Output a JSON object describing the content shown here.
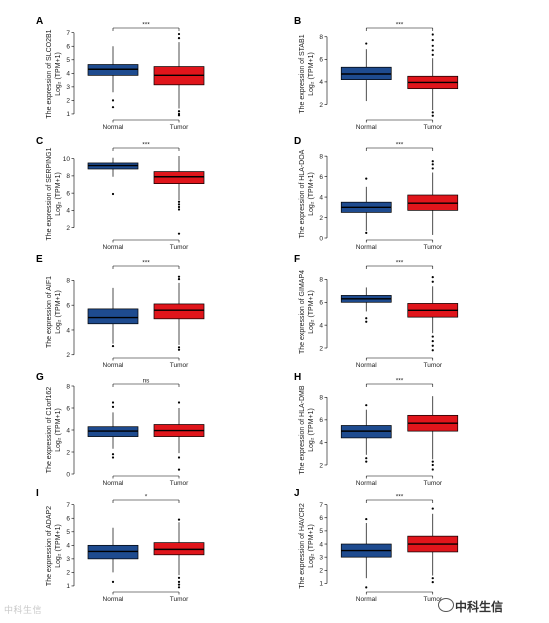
{
  "figure": {
    "xlabel_prefix": "",
    "category_normal": "Normal",
    "category_tumor": "Tumor",
    "ylabel_line2": "Log₂ (TPM+1)"
  },
  "colors": {
    "normal": "#1e4b8f",
    "tumor": "#e0151b",
    "line": "#000000"
  },
  "watermark": {
    "left_text": "中科生信",
    "left_prefix": "4",
    "right_text": "中科生信"
  },
  "chart_data": [
    {
      "panel": "A",
      "type": "boxplot",
      "ylabel": "The expression of SLCO2B1",
      "categories": [
        "Normal",
        "Tumor"
      ],
      "yticks": [
        1,
        2,
        3,
        4,
        5,
        6,
        7
      ],
      "ylim": [
        0.7,
        7.2
      ],
      "significance": "***",
      "series": [
        {
          "name": "Normal",
          "min": 2.6,
          "q1": 3.85,
          "median": 4.3,
          "q3": 4.65,
          "max": 6.0,
          "outliers": [
            2.0,
            1.5
          ]
        },
        {
          "name": "Tumor",
          "min": 1.4,
          "q1": 3.15,
          "median": 3.85,
          "q3": 4.5,
          "max": 6.3,
          "outliers": [
            6.6,
            6.9,
            1.2,
            1.0,
            0.9
          ]
        }
      ]
    },
    {
      "panel": "B",
      "type": "boxplot",
      "ylabel": "The expression of STAB1",
      "categories": [
        "Normal",
        "Tumor"
      ],
      "yticks": [
        2,
        4,
        6,
        8
      ],
      "ylim": [
        0.8,
        8.6
      ],
      "significance": "***",
      "series": [
        {
          "name": "Normal",
          "min": 2.3,
          "q1": 4.2,
          "median": 4.7,
          "q3": 5.3,
          "max": 6.9,
          "outliers": [
            7.4
          ]
        },
        {
          "name": "Tumor",
          "min": 1.5,
          "q1": 3.4,
          "median": 3.95,
          "q3": 4.5,
          "max": 6.1,
          "outliers": [
            6.4,
            6.8,
            7.2,
            7.7,
            8.2,
            1.3,
            1.0
          ]
        }
      ]
    },
    {
      "panel": "C",
      "type": "boxplot",
      "ylabel": "The expression of SERPING1",
      "categories": [
        "Normal",
        "Tumor"
      ],
      "yticks": [
        2,
        4,
        6,
        8,
        10
      ],
      "ylim": [
        0.8,
        11.0
      ],
      "significance": "***",
      "series": [
        {
          "name": "Normal",
          "min": 7.9,
          "q1": 8.8,
          "median": 9.2,
          "q3": 9.5,
          "max": 10.1,
          "outliers": [
            5.9
          ]
        },
        {
          "name": "Tumor",
          "min": 5.2,
          "q1": 7.1,
          "median": 7.9,
          "q3": 8.5,
          "max": 10.3,
          "outliers": [
            5.0,
            4.7,
            4.4,
            4.1,
            1.3
          ]
        }
      ]
    },
    {
      "panel": "D",
      "type": "boxplot",
      "ylabel": "The expression of HLA-DOA",
      "categories": [
        "Normal",
        "Tumor"
      ],
      "yticks": [
        0,
        2,
        4,
        6,
        8
      ],
      "ylim": [
        0,
        8.6
      ],
      "significance": "***",
      "series": [
        {
          "name": "Normal",
          "min": 0.7,
          "q1": 2.5,
          "median": 3.0,
          "q3": 3.5,
          "max": 5.0,
          "outliers": [
            5.8,
            0.5
          ]
        },
        {
          "name": "Tumor",
          "min": 0.3,
          "q1": 2.7,
          "median": 3.4,
          "q3": 4.2,
          "max": 6.4,
          "outliers": [
            6.8,
            7.2,
            7.5
          ]
        }
      ]
    },
    {
      "panel": "E",
      "type": "boxplot",
      "ylabel": "The expression of AIF1",
      "categories": [
        "Normal",
        "Tumor"
      ],
      "yticks": [
        2,
        4,
        6,
        8
      ],
      "ylim": [
        1.9,
        9.0
      ],
      "significance": "***",
      "series": [
        {
          "name": "Normal",
          "min": 2.9,
          "q1": 4.5,
          "median": 5.0,
          "q3": 5.7,
          "max": 7.4,
          "outliers": [
            2.7
          ]
        },
        {
          "name": "Tumor",
          "min": 2.8,
          "q1": 4.9,
          "median": 5.6,
          "q3": 6.1,
          "max": 7.8,
          "outliers": [
            8.1,
            8.3,
            2.6,
            2.4
          ]
        }
      ]
    },
    {
      "panel": "F",
      "type": "boxplot",
      "ylabel": "The expression of GIMAP4",
      "categories": [
        "Normal",
        "Tumor"
      ],
      "yticks": [
        2,
        4,
        6,
        8
      ],
      "ylim": [
        1.3,
        9.0
      ],
      "significance": "***",
      "series": [
        {
          "name": "Normal",
          "min": 5.2,
          "q1": 6.0,
          "median": 6.3,
          "q3": 6.6,
          "max": 7.3,
          "outliers": [
            4.6,
            4.3
          ]
        },
        {
          "name": "Tumor",
          "min": 3.3,
          "q1": 4.7,
          "median": 5.3,
          "q3": 5.9,
          "max": 7.4,
          "outliers": [
            7.8,
            8.2,
            3.0,
            2.6,
            2.2,
            1.8
          ]
        }
      ]
    },
    {
      "panel": "G",
      "type": "boxplot",
      "ylabel": "The expression of C1orf162",
      "categories": [
        "Normal",
        "Tumor"
      ],
      "yticks": [
        0,
        2,
        4,
        6,
        8
      ],
      "ylim": [
        0,
        8.0
      ],
      "significance": "ns",
      "series": [
        {
          "name": "Normal",
          "min": 2.3,
          "q1": 3.4,
          "median": 3.9,
          "q3": 4.3,
          "max": 5.6,
          "outliers": [
            6.1,
            6.5,
            1.8,
            1.5
          ]
        },
        {
          "name": "Tumor",
          "min": 1.9,
          "q1": 3.4,
          "median": 3.95,
          "q3": 4.5,
          "max": 6.0,
          "outliers": [
            6.5,
            1.5,
            0.4
          ]
        }
      ]
    },
    {
      "panel": "H",
      "type": "boxplot",
      "ylabel": "The expression of HLA-DMB",
      "categories": [
        "Normal",
        "Tumor"
      ],
      "yticks": [
        2,
        4,
        6,
        8
      ],
      "ylim": [
        1.2,
        9.0
      ],
      "significance": "***",
      "series": [
        {
          "name": "Normal",
          "min": 2.9,
          "q1": 4.4,
          "median": 5.0,
          "q3": 5.5,
          "max": 6.9,
          "outliers": [
            7.3,
            2.6,
            2.3
          ]
        },
        {
          "name": "Tumor",
          "min": 2.5,
          "q1": 5.0,
          "median": 5.7,
          "q3": 6.4,
          "max": 8.1,
          "outliers": [
            2.3,
            2.0,
            1.6
          ]
        }
      ]
    },
    {
      "panel": "I",
      "type": "boxplot",
      "ylabel": "The expression of ADAP2",
      "categories": [
        "Normal",
        "Tumor"
      ],
      "yticks": [
        1,
        2,
        3,
        4,
        5,
        6,
        7
      ],
      "ylim": [
        0.7,
        7.2
      ],
      "significance": "*",
      "series": [
        {
          "name": "Normal",
          "min": 2.0,
          "q1": 3.0,
          "median": 3.55,
          "q3": 4.0,
          "max": 5.3,
          "outliers": [
            1.3
          ]
        },
        {
          "name": "Tumor",
          "min": 1.8,
          "q1": 3.3,
          "median": 3.7,
          "q3": 4.2,
          "max": 5.7,
          "outliers": [
            5.9,
            1.6,
            1.3,
            1.1,
            0.9
          ]
        }
      ]
    },
    {
      "panel": "J",
      "type": "boxplot",
      "ylabel": "The expression of HAVCR2",
      "categories": [
        "Normal",
        "Tumor"
      ],
      "yticks": [
        1,
        2,
        3,
        4,
        5,
        6,
        7
      ],
      "ylim": [
        0.5,
        7.2
      ],
      "significance": "***",
      "series": [
        {
          "name": "Normal",
          "min": 1.4,
          "q1": 3.0,
          "median": 3.5,
          "q3": 4.0,
          "max": 5.6,
          "outliers": [
            5.9,
            0.7
          ]
        },
        {
          "name": "Tumor",
          "min": 1.6,
          "q1": 3.4,
          "median": 4.0,
          "q3": 4.6,
          "max": 6.3,
          "outliers": [
            6.7,
            1.4,
            1.1
          ]
        }
      ]
    }
  ]
}
